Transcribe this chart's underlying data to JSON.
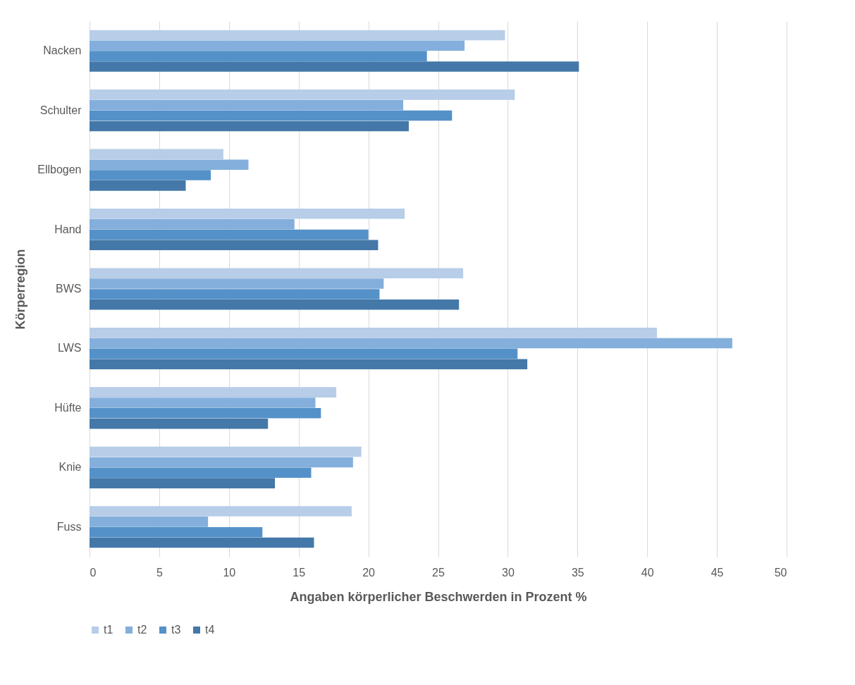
{
  "chart_data": {
    "type": "bar",
    "orientation": "horizontal",
    "xlabel": "Angaben körperlicher Beschwerden in Prozent %",
    "ylabel": "Körperregion",
    "categories": [
      "Nacken",
      "Schulter",
      "Ellbogen",
      "Hand",
      "BWS",
      "LWS",
      "Hüfte",
      "Knie",
      "Fuss"
    ],
    "series": [
      {
        "name": "t1",
        "color": "#b7cde8",
        "values": [
          29.8,
          30.5,
          9.6,
          22.6,
          26.8,
          40.7,
          17.7,
          19.5,
          18.8
        ]
      },
      {
        "name": "t2",
        "color": "#84afdc",
        "values": [
          26.9,
          22.5,
          11.4,
          14.7,
          21.1,
          46.1,
          16.2,
          18.9,
          8.5
        ]
      },
      {
        "name": "t3",
        "color": "#5491c8",
        "values": [
          24.2,
          26.0,
          8.7,
          20.0,
          20.8,
          30.7,
          16.6,
          15.9,
          12.4
        ]
      },
      {
        "name": "t4",
        "color": "#4478a8",
        "values": [
          35.1,
          22.9,
          6.9,
          20.7,
          26.5,
          31.4,
          12.8,
          13.3,
          16.1
        ]
      }
    ],
    "xlim": [
      0,
      50
    ],
    "xticks": [
      0,
      5,
      10,
      15,
      20,
      25,
      30,
      35,
      40,
      45,
      50
    ],
    "grid": "x",
    "legend": "bottom"
  }
}
